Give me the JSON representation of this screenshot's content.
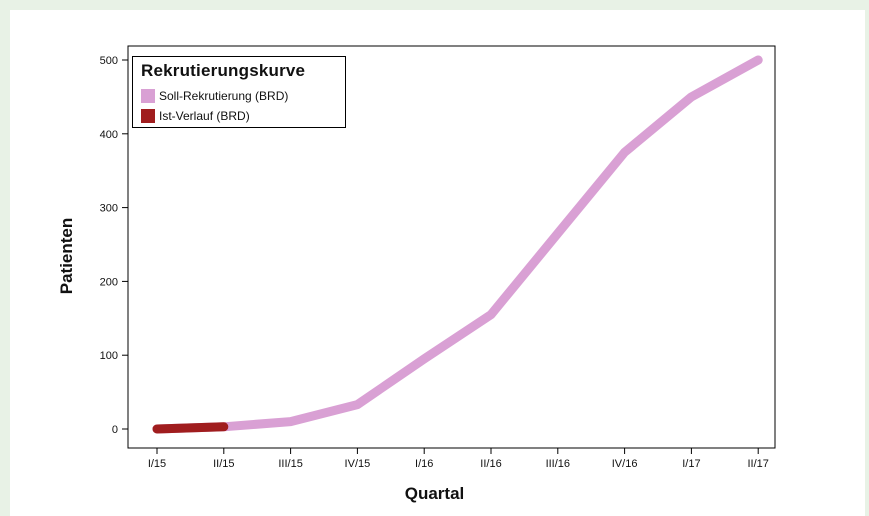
{
  "chart_data": {
    "type": "line",
    "title": "",
    "xlabel": "Quartal",
    "ylabel": "Patienten",
    "categories": [
      "I/15",
      "II/15",
      "III/15",
      "IV/15",
      "I/16",
      "II/16",
      "III/16",
      "IV/16",
      "I/17",
      "II/17"
    ],
    "ylim": [
      0,
      500
    ],
    "yticks": [
      0,
      100,
      200,
      300,
      400,
      500
    ],
    "grid": false,
    "legend": {
      "title": "Rekrutierungskurve",
      "placement": "top-left"
    },
    "series": [
      {
        "name": "Soll-Rekrutierung (BRD)",
        "color": "#d9a0d4",
        "values": [
          0,
          3,
          10,
          33,
          95,
          155,
          265,
          375,
          450,
          500
        ]
      },
      {
        "name": "Ist-Verlauf (BRD)",
        "color": "#a01d1e",
        "values": [
          0,
          3,
          null,
          null,
          null,
          null,
          null,
          null,
          null,
          null
        ]
      }
    ]
  }
}
